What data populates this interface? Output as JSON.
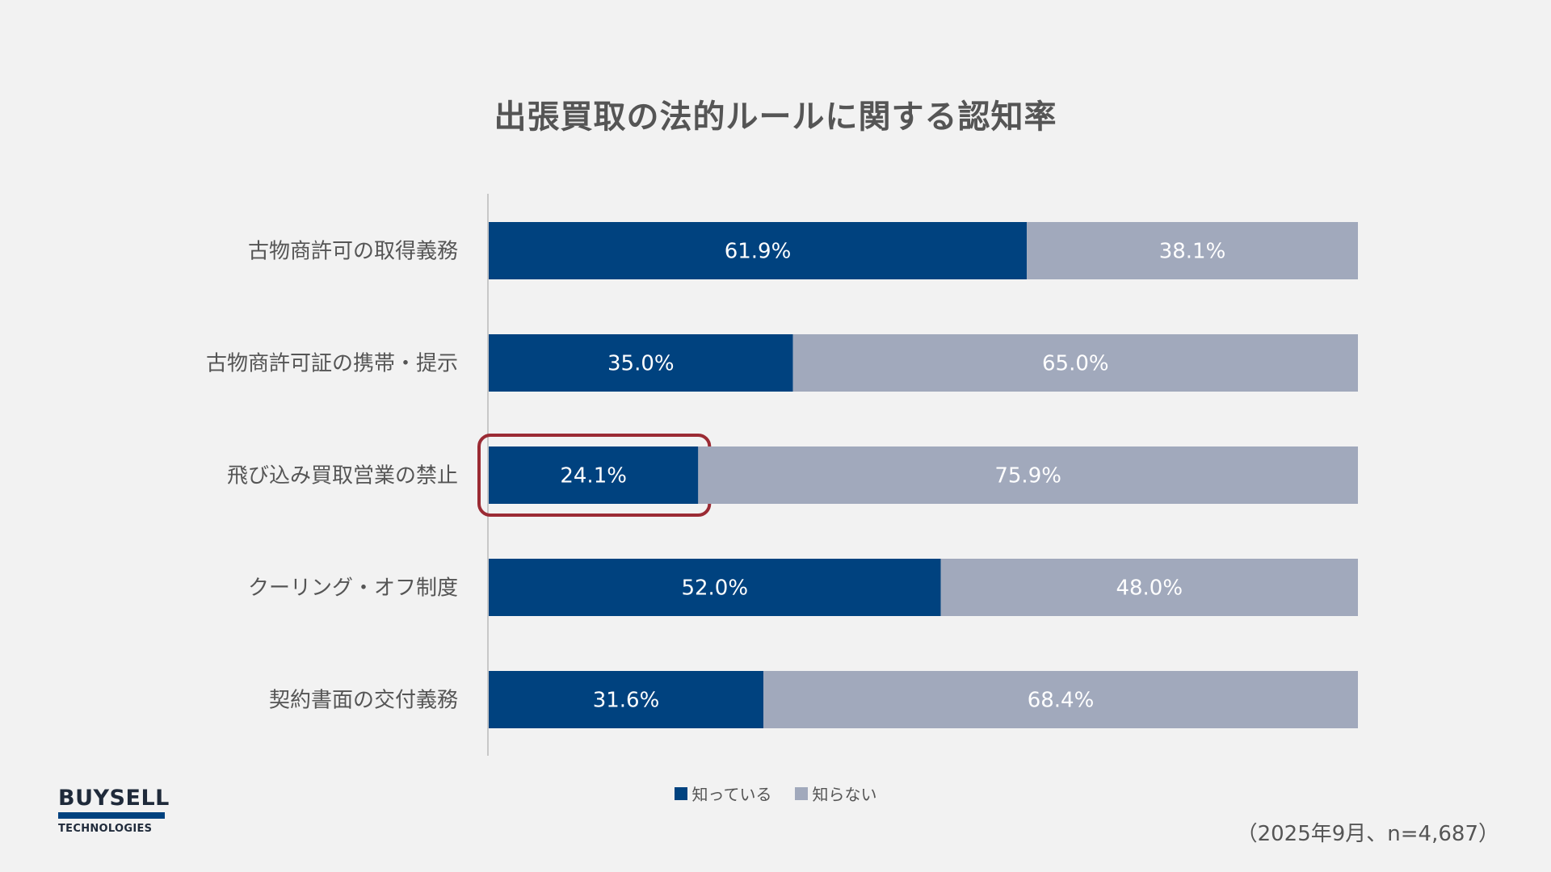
{
  "colors": {
    "known": "#00427f",
    "unknown": "#a1a9bc",
    "highlight": "#9b2b34",
    "axis": "#c8c8c8",
    "logo_blue": "#00427f",
    "logo_text": "#1f2a3a"
  },
  "logo": {
    "main": "BUYSELL",
    "sub": "TECHNOLOGIES"
  },
  "footnote": "（2025年9月、n=4,687）",
  "chart_data": {
    "type": "bar",
    "orientation": "horizontal",
    "stacked": true,
    "percent_stacked": true,
    "title": "出張買取の法的ルールに関する認知率",
    "categories": [
      "古物商許可の取得義務",
      "古物商許可証の携帯・提示",
      "飛び込み買取営業の禁止",
      "クーリング・オフ制度",
      "契約書面の交付義務"
    ],
    "series": [
      {
        "name": "知っている",
        "values": [
          61.9,
          35.0,
          24.1,
          52.0,
          31.6
        ],
        "labels": [
          "61.9%",
          "35.0%",
          "24.1%",
          "52.0%",
          "31.6%"
        ]
      },
      {
        "name": "知らない",
        "values": [
          38.1,
          65.0,
          75.9,
          48.0,
          68.4
        ],
        "labels": [
          "38.1%",
          "65.0%",
          "75.9%",
          "48.0%",
          "68.4%"
        ]
      }
    ],
    "xlim": [
      0,
      100
    ],
    "highlighted": {
      "category": "飛び込み買取営業の禁止",
      "series": "知っている"
    },
    "legend": "bottom",
    "grid": false
  }
}
